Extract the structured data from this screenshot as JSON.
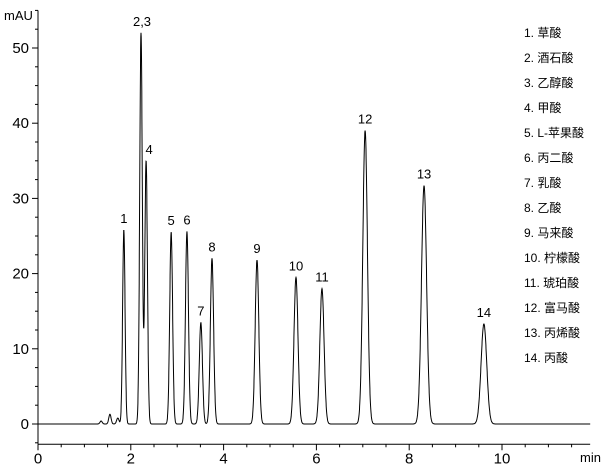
{
  "chart_data": {
    "type": "line",
    "title": "",
    "xlabel": "min",
    "ylabel": "mAU",
    "xlim": [
      0,
      11.9
    ],
    "ylim": [
      -2.7,
      55
    ],
    "xticks": [
      "0",
      "2",
      "4",
      "6",
      "8",
      "10"
    ],
    "yticks": [
      "0",
      "10",
      "20",
      "30",
      "40",
      "50"
    ],
    "grid": false,
    "line_color": "#000000",
    "peaks": [
      {
        "label": "1",
        "rt": 1.85,
        "height": 25.8
      },
      {
        "label": "2,3",
        "rt": 2.22,
        "height": 52.0
      },
      {
        "label": "4",
        "rt": 2.33,
        "height": 35.0
      },
      {
        "label": "5",
        "rt": 2.87,
        "height": 25.5
      },
      {
        "label": "6",
        "rt": 3.21,
        "height": 25.6
      },
      {
        "label": "7",
        "rt": 3.51,
        "height": 13.5
      },
      {
        "label": "8",
        "rt": 3.75,
        "height": 22.0
      },
      {
        "label": "9",
        "rt": 4.72,
        "height": 21.8
      },
      {
        "label": "10",
        "rt": 5.56,
        "height": 19.5
      },
      {
        "label": "11",
        "rt": 6.12,
        "height": 18.0
      },
      {
        "label": "12",
        "rt": 7.05,
        "height": 39.0
      },
      {
        "label": "13",
        "rt": 8.32,
        "height": 31.7
      },
      {
        "label": "14",
        "rt": 9.61,
        "height": 13.3
      }
    ],
    "legend_position": "right",
    "legend": [
      "1.  草酸",
      "2.  酒石酸",
      "3.  乙醇酸",
      "4.  甲酸",
      "5.  L-苹果酸",
      "6.  丙二酸",
      "7.  乳酸",
      "8.  乙酸",
      "9.  马来酸",
      "10.  柠檬酸",
      "11.  琥珀酸",
      "12.  富马酸",
      "13.  丙烯酸",
      "14.  丙酸"
    ]
  }
}
